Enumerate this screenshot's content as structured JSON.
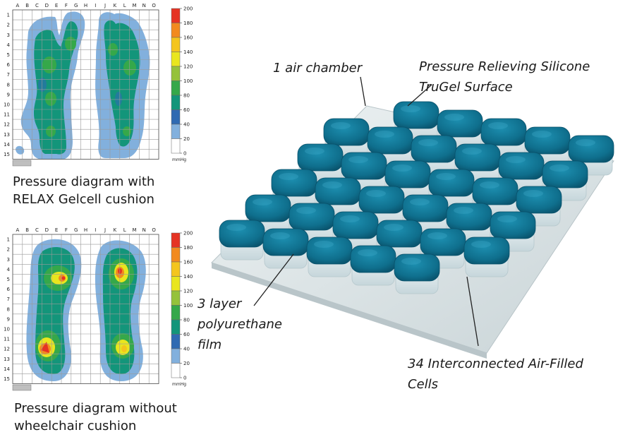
{
  "diagram_top": {
    "columns": [
      "A",
      "B",
      "C",
      "D",
      "E",
      "F",
      "G",
      "H",
      "I",
      "J",
      "K",
      "L",
      "M",
      "N",
      "O"
    ],
    "rows": [
      "1",
      "2",
      "3",
      "4",
      "5",
      "6",
      "7",
      "8",
      "9",
      "10",
      "11",
      "12",
      "13",
      "14",
      "15"
    ],
    "scale_ticks": [
      "200",
      "180",
      "160",
      "140",
      "120",
      "100",
      "80",
      "60",
      "40",
      "20",
      "0"
    ],
    "unit": "mmHg",
    "caption": "Pressure diagram with\nRELAX Gelcell cushion"
  },
  "diagram_bottom": {
    "columns": [
      "A",
      "B",
      "C",
      "D",
      "E",
      "F",
      "G",
      "H",
      "I",
      "J",
      "K",
      "L",
      "M",
      "N",
      "O"
    ],
    "rows": [
      "1",
      "2",
      "3",
      "4",
      "5",
      "6",
      "7",
      "8",
      "9",
      "10",
      "11",
      "12",
      "13",
      "14",
      "15"
    ],
    "scale_ticks": [
      "200",
      "180",
      "160",
      "140",
      "120",
      "100",
      "80",
      "60",
      "40",
      "20",
      "0"
    ],
    "unit": "mmHg",
    "caption": "Pressure diagram without\nwheelchair cushion"
  },
  "scale_colors": [
    "#e53323",
    "#f28a1f",
    "#f4c51d",
    "#e9e61e",
    "#95c23b",
    "#35a84a",
    "#13957a",
    "#2f6ab2",
    "#82b0dd",
    "#ffffff"
  ],
  "callouts": {
    "air_chamber": "1 air chamber",
    "silicone": "Pressure Relieving Silicone\n   TruGel Surface",
    "film": "3 layer\npolyurethane\nfilm",
    "cells": "34 Interconnected Air-Filled\n     Cells"
  }
}
